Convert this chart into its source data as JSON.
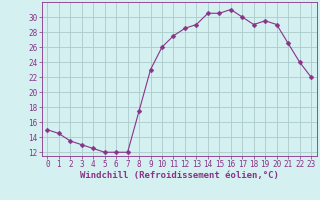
{
  "x": [
    0,
    1,
    2,
    3,
    4,
    5,
    6,
    7,
    8,
    9,
    10,
    11,
    12,
    13,
    14,
    15,
    16,
    17,
    18,
    19,
    20,
    21,
    22,
    23
  ],
  "y": [
    15.0,
    14.5,
    13.5,
    13.0,
    12.5,
    12.0,
    12.0,
    12.0,
    17.5,
    23.0,
    26.0,
    27.5,
    28.5,
    29.0,
    30.5,
    30.5,
    31.0,
    30.0,
    29.0,
    29.5,
    29.0,
    26.5,
    24.0,
    22.0
  ],
  "line_color": "#883388",
  "marker": "D",
  "marker_size": 2.5,
  "bg_color": "#d5f0f0",
  "grid_color": "#aacccc",
  "xlabel": "Windchill (Refroidissement éolien,°C)",
  "xlabel_fontsize": 6.5,
  "xtick_labels": [
    "0",
    "1",
    "2",
    "3",
    "4",
    "5",
    "6",
    "7",
    "8",
    "9",
    "10",
    "11",
    "12",
    "13",
    "14",
    "15",
    "16",
    "17",
    "18",
    "19",
    "20",
    "21",
    "22",
    "23"
  ],
  "ylim": [
    11.5,
    32
  ],
  "yticks": [
    12,
    14,
    16,
    18,
    20,
    22,
    24,
    26,
    28,
    30
  ],
  "xlim": [
    -0.5,
    23.5
  ],
  "tick_color": "#883388",
  "tick_fontsize": 5.5,
  "spine_color": "#883388"
}
